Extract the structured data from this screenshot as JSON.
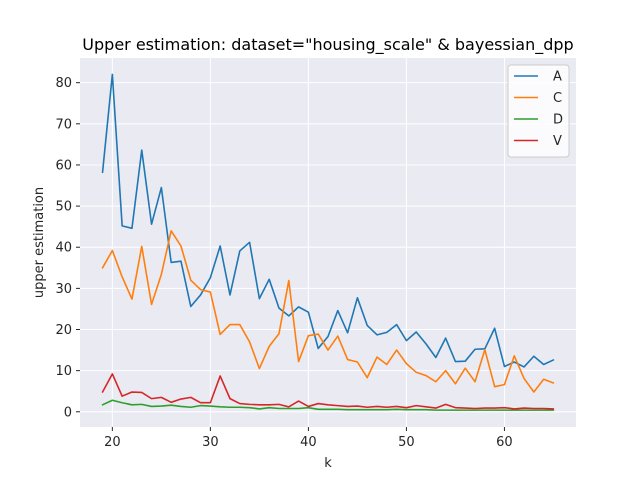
{
  "chart_data": {
    "type": "line",
    "title": "Upper estimation: dataset=\"housing_scale\" & bayessian_dpp",
    "xlabel": "k",
    "ylabel": "upper estimation",
    "xlim": [
      16.7,
      67.3
    ],
    "ylim": [
      -3.7,
      86.0
    ],
    "xticks": [
      20,
      30,
      40,
      50,
      60
    ],
    "yticks": [
      0,
      10,
      20,
      30,
      40,
      50,
      60,
      70,
      80
    ],
    "grid": true,
    "legend_position": "upper right",
    "x": [
      19,
      20,
      21,
      22,
      23,
      24,
      25,
      26,
      27,
      28,
      29,
      30,
      31,
      32,
      33,
      34,
      35,
      36,
      37,
      38,
      39,
      40,
      41,
      42,
      43,
      44,
      45,
      46,
      47,
      48,
      49,
      50,
      51,
      52,
      53,
      54,
      55,
      56,
      57,
      58,
      59,
      60,
      61,
      62,
      63,
      64,
      65
    ],
    "series": [
      {
        "name": "A",
        "color": "#1f77b4",
        "values": [
          58.2,
          82.0,
          45.2,
          44.6,
          63.6,
          45.6,
          54.5,
          36.3,
          36.6,
          25.6,
          28.4,
          32.6,
          40.3,
          28.4,
          39.1,
          41.2,
          27.5,
          32.2,
          25.2,
          23.3,
          25.5,
          24.2,
          15.4,
          18.3,
          24.6,
          19.2,
          27.7,
          21.0,
          18.7,
          19.3,
          21.2,
          17.3,
          19.4,
          16.5,
          13.2,
          17.9,
          12.2,
          12.3,
          15.2,
          15.3,
          20.3,
          11.0,
          12.1,
          10.9,
          13.5,
          11.5,
          12.6
        ]
      },
      {
        "name": "C",
        "color": "#ff7f0e",
        "values": [
          35.0,
          39.2,
          32.8,
          27.4,
          40.2,
          26.1,
          33.4,
          44.0,
          40.3,
          32.0,
          29.7,
          29.1,
          18.8,
          21.2,
          21.2,
          17.0,
          10.5,
          15.9,
          19.0,
          31.9,
          12.2,
          18.5,
          18.9,
          15.0,
          18.4,
          12.7,
          12.1,
          8.3,
          13.3,
          11.5,
          15.0,
          11.7,
          9.6,
          8.8,
          7.3,
          10.0,
          6.8,
          10.6,
          7.3,
          15.1,
          6.1,
          6.6,
          13.6,
          8.1,
          4.8,
          7.9,
          7.0
        ]
      },
      {
        "name": "D",
        "color": "#2ca02c",
        "values": [
          1.7,
          2.8,
          2.2,
          1.7,
          1.8,
          1.3,
          1.4,
          1.6,
          1.3,
          1.1,
          1.5,
          1.4,
          1.2,
          1.1,
          1.1,
          1.0,
          0.7,
          1.0,
          0.8,
          0.8,
          0.8,
          1.0,
          0.6,
          0.6,
          0.6,
          0.5,
          0.5,
          0.5,
          0.5,
          0.5,
          0.6,
          0.5,
          0.5,
          0.5,
          0.4,
          0.4,
          0.4,
          0.4,
          0.4,
          0.4,
          0.4,
          0.4,
          0.4,
          0.4,
          0.4,
          0.4,
          0.4
        ]
      },
      {
        "name": "V",
        "color": "#d62728",
        "values": [
          4.8,
          9.2,
          3.8,
          4.8,
          4.7,
          3.2,
          3.5,
          2.3,
          3.1,
          3.5,
          2.2,
          2.2,
          8.7,
          3.2,
          2.0,
          1.8,
          1.7,
          1.7,
          1.8,
          1.2,
          2.6,
          1.3,
          2.0,
          1.7,
          1.5,
          1.3,
          1.4,
          1.1,
          1.3,
          1.1,
          1.3,
          1.0,
          1.5,
          1.2,
          0.9,
          1.8,
          1.0,
          0.9,
          0.8,
          0.9,
          0.9,
          1.0,
          0.7,
          0.9,
          0.8,
          0.8,
          0.7
        ]
      }
    ]
  }
}
